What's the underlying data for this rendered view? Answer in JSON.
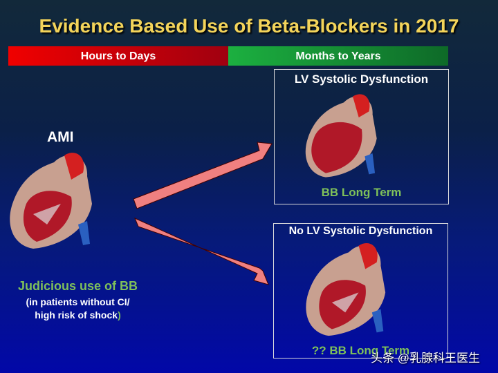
{
  "title": "Evidence Based Use of Beta-Blockers in 2017",
  "timeline": {
    "early": "Hours to Days",
    "late": "Months to Years"
  },
  "left": {
    "label": "AMI",
    "recommendation": "Judicious use of BB",
    "note_line1": "(in patients without CI/",
    "note_line2": "high risk of shock",
    "note_close": ")"
  },
  "top_box": {
    "title": "LV Systolic Dysfunction",
    "caption": "BB Long Term"
  },
  "bottom_box": {
    "title": "No LV Systolic Dysfunction",
    "caption": "?? BB Long Term"
  },
  "watermark": "头条 @乳腺科王医生",
  "colors": {
    "title": "#f3d45a",
    "green_text": "#7fc15a",
    "arrow": "#f08080",
    "red_bar": "#f00000",
    "green_bar": "#1cb040"
  }
}
